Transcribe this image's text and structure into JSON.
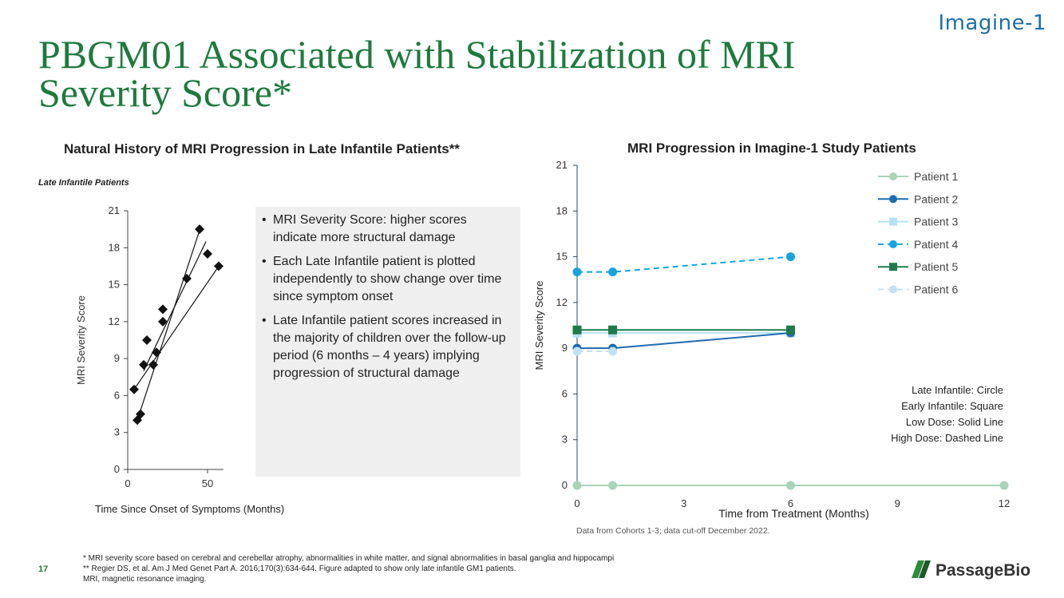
{
  "brand": "Imagine-1",
  "page": {
    "title": "PBGM01 Associated with Stabilization of MRI Severity Score*",
    "number": "17"
  },
  "left_panel": {
    "subtitle": "Late Infantile Patients",
    "xlabel": "Time Since Onset of Symptoms (Months)"
  },
  "notes": [
    "MRI Severity Score: higher scores indicate more structural damage",
    "Each Late Infantile patient is plotted independently to show change over time since symptom onset",
    "Late Infantile patient scores increased in the majority of children over the follow-up period (6 months – 4 years) implying progression of structural damage"
  ],
  "legend_notes": [
    "Late Infantile: Circle",
    "Early Infantile: Square",
    "Low Dose: Solid Line",
    "High Dose: Dashed Line"
  ],
  "data_source": "Data from Cohorts 1-3; data cut-off December 2022.",
  "footnotes": [
    "* MRI severity score based on cerebral and cerebellar atrophy, abnormalities in white matter, and signal abnormalities in basal ganglia and hippocampi",
    "** Regier DS, et al. Am J Med Genet Part A. 2016;170(3):634-644. Figure adapted to show only late infantile GM1 patients.",
    "MRI, magnetic resonance imaging."
  ],
  "company_logo_text": "PassageBio",
  "chart_data": [
    {
      "type": "scatter",
      "title": "Natural History of MRI Progression in Late Infantile Patients**",
      "ylabel": "MRI Severity Score",
      "xlim": [
        0,
        60
      ],
      "ylim": [
        0,
        21
      ],
      "xticks": [
        0,
        50
      ],
      "yticks": [
        0,
        3,
        6,
        9,
        12,
        15,
        18,
        21
      ],
      "points": [
        {
          "x": 4,
          "y": 6.5
        },
        {
          "x": 12,
          "y": 10.5
        },
        {
          "x": 22,
          "y": 13
        },
        {
          "x": 6,
          "y": 4
        },
        {
          "x": 8,
          "y": 4.5
        },
        {
          "x": 22,
          "y": 12
        },
        {
          "x": 37,
          "y": 15.5
        },
        {
          "x": 45,
          "y": 19.5
        },
        {
          "x": 10,
          "y": 8.5
        },
        {
          "x": 16,
          "y": 8.5
        },
        {
          "x": 18,
          "y": 9.5
        },
        {
          "x": 50,
          "y": 17.5
        },
        {
          "x": 57,
          "y": 16.5
        }
      ],
      "trend_lines": [
        {
          "x": [
            4,
            57
          ],
          "y": [
            6.5,
            16.5
          ]
        },
        {
          "x": [
            6,
            46
          ],
          "y": [
            4,
            19.8
          ]
        },
        {
          "x": [
            10,
            49
          ],
          "y": [
            8.0,
            18.5
          ]
        }
      ]
    },
    {
      "type": "line",
      "title": "MRI Progression in Imagine-1 Study Patients",
      "xlabel": "Time from Treatment (Months)",
      "ylabel": "MRI Severity Score",
      "xlim": [
        0,
        12
      ],
      "ylim": [
        0,
        21
      ],
      "xticks": [
        0,
        3,
        6,
        9,
        12
      ],
      "yticks": [
        0,
        3,
        6,
        9,
        12,
        15,
        18,
        21
      ],
      "legend_position": "top-right",
      "series": [
        {
          "name": "Patient 1",
          "color": "#a9d4b8",
          "marker": "circle",
          "dash": "solid",
          "x": [
            0,
            1,
            6,
            12
          ],
          "y": [
            0,
            0,
            0,
            0
          ]
        },
        {
          "name": "Patient 2",
          "color": "#1f6bb0",
          "marker": "circle",
          "dash": "solid",
          "x": [
            0,
            1,
            6
          ],
          "y": [
            9,
            9,
            10
          ]
        },
        {
          "name": "Patient 3",
          "color": "#b8e2f4",
          "marker": "square",
          "dash": "solid",
          "x": [
            0,
            1,
            6
          ],
          "y": [
            10,
            10,
            10
          ]
        },
        {
          "name": "Patient 4",
          "color": "#16a4dc",
          "marker": "circle",
          "dash": "dashed",
          "x": [
            0,
            1,
            6
          ],
          "y": [
            14,
            14,
            15
          ]
        },
        {
          "name": "Patient 5",
          "color": "#1e7a4a",
          "marker": "square",
          "dash": "solid",
          "x": [
            0,
            1,
            6
          ],
          "y": [
            10.2,
            10.2,
            10.2
          ]
        },
        {
          "name": "Patient 6",
          "color": "#c3e1f3",
          "marker": "circle",
          "dash": "dashed",
          "x": [
            0,
            1
          ],
          "y": [
            8.8,
            8.8
          ]
        }
      ]
    }
  ]
}
